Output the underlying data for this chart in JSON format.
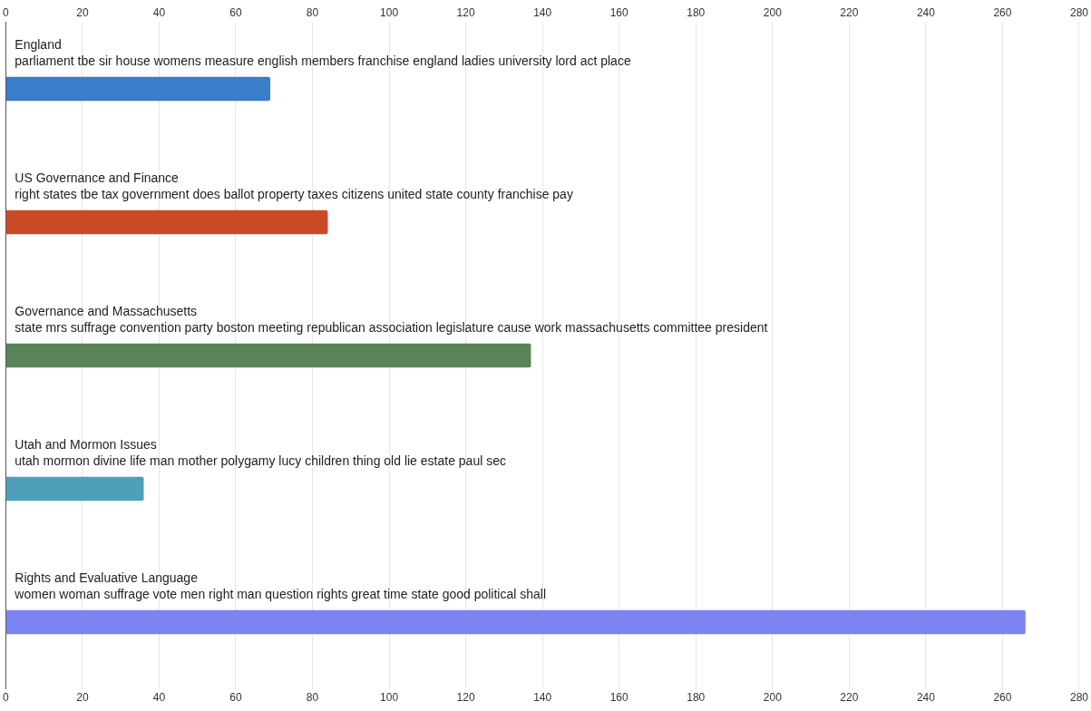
{
  "chart_data": {
    "type": "bar",
    "orientation": "horizontal",
    "categories": [
      "England\nparliament tbe sir house womens measure english members franchise england ladies university lord act place",
      "US Governance and Finance\nright states tbe tax government does ballot property taxes citizens united state county franchise pay",
      "Governance and Massachusetts\nstate mrs suffrage convention party boston meeting republican association legislature cause work massachusetts committee president",
      "Utah and Mormon Issues\nutah mormon divine life man mother polygamy lucy children thing old lie estate paul sec",
      "Rights and Evaluative Language\nwomen woman suffrage vote men right man question rights great time state good political shall"
    ],
    "values": [
      69,
      84,
      137,
      36,
      266
    ],
    "colors": [
      "#3a7dc9",
      "#c94b25",
      "#5a8358",
      "#4f9fba",
      "#7b83f2"
    ],
    "xlim": [
      0,
      280
    ],
    "xticks": [
      0,
      20,
      40,
      60,
      80,
      100,
      120,
      140,
      160,
      180,
      200,
      220,
      240,
      260,
      280
    ],
    "x2lim": [
      0,
      280
    ],
    "x2ticks": [
      0,
      20,
      40,
      60,
      80,
      100,
      120,
      140,
      160,
      180,
      200,
      220,
      240,
      260,
      280
    ],
    "grid": "x",
    "legend": false
  }
}
